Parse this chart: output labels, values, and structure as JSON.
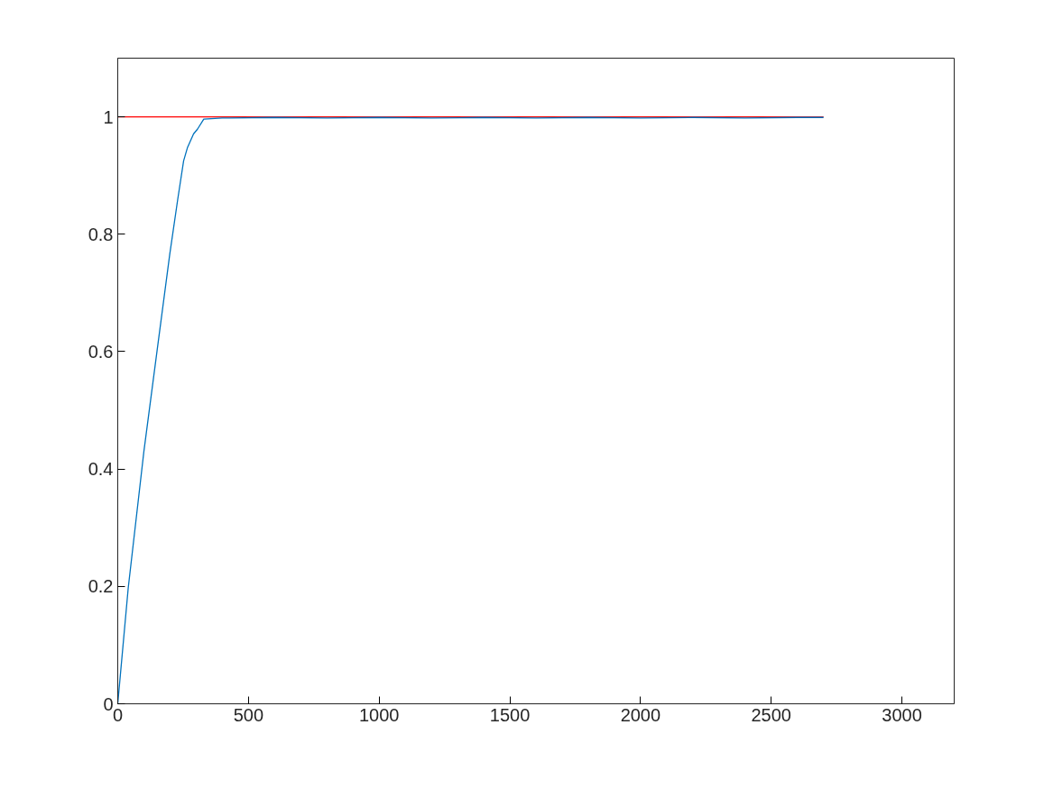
{
  "chart_data": {
    "type": "line",
    "xlim": [
      0,
      3200
    ],
    "ylim": [
      0,
      1.1
    ],
    "xticks": [
      0,
      500,
      1000,
      1500,
      2000,
      2500,
      3000
    ],
    "yticks": [
      0,
      0.2,
      0.4,
      0.6,
      0.8,
      1
    ],
    "grid": false,
    "series": [
      {
        "color": "#0072bd",
        "x": [
          0,
          40,
          100,
          150,
          199,
          229,
          252,
          267,
          290,
          305,
          329,
          400,
          600,
          800,
          1000,
          1200,
          1400,
          1600,
          1800,
          2000,
          2200,
          2400,
          2600,
          2700
        ],
        "values": [
          0,
          0.197,
          0.43,
          0.6,
          0.766,
          0.858,
          0.925,
          0.948,
          0.971,
          0.979,
          0.996,
          0.998,
          0.999,
          0.998,
          0.999,
          0.998,
          0.999,
          0.998,
          0.999,
          0.998,
          0.999,
          0.998,
          0.999,
          0.999
        ]
      },
      {
        "color": "#ff0000",
        "x": [
          0,
          2700
        ],
        "values": [
          1,
          1
        ]
      }
    ]
  }
}
